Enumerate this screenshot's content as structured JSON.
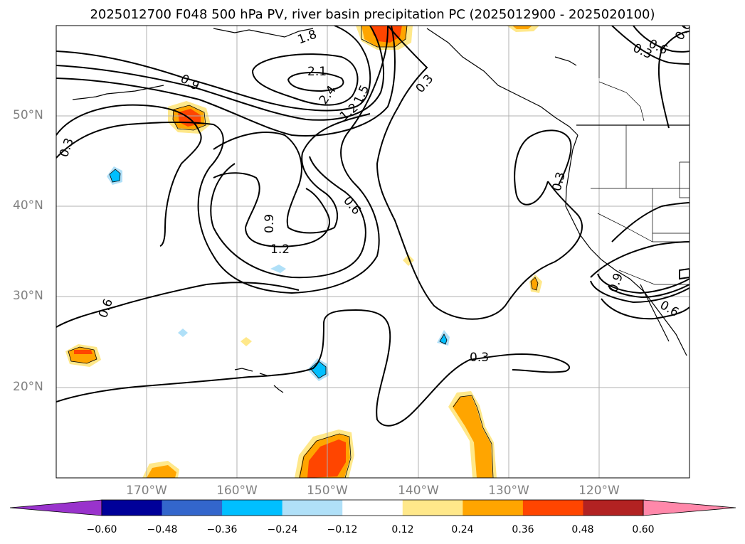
{
  "title": "2025012700 F048 500 hPa PV, river basin precipitation PC (2025012900 - 2025020100)",
  "map": {
    "lat_labels": [
      "50°N",
      "40°N",
      "30°N",
      "20°N"
    ],
    "lon_labels": [
      "170°W",
      "160°W",
      "150°W",
      "140°W",
      "130°W",
      "120°W"
    ],
    "contour_labels": [
      "1.8",
      "2.1",
      "2.4",
      "1.5",
      "1.2",
      "0.9",
      "0.3",
      "0.3",
      "0.3",
      "0.6",
      "0.6",
      "0.9",
      "1.2",
      "0.3",
      "0.6",
      "0.9",
      "0.6",
      "0.3",
      "0.6"
    ]
  },
  "colorbar": {
    "ticks": [
      "−0.60",
      "−0.48",
      "−0.36",
      "−0.24",
      "−0.12",
      "0.12",
      "0.24",
      "0.36",
      "0.48",
      "0.60"
    ],
    "colors": [
      "#9933cc",
      "#000099",
      "#3366cc",
      "#00bfff",
      "#b0e0f8",
      "#ffffff",
      "#ffe88a",
      "#ffa500",
      "#ff4500",
      "#b22222",
      "#ff88aa"
    ]
  }
}
